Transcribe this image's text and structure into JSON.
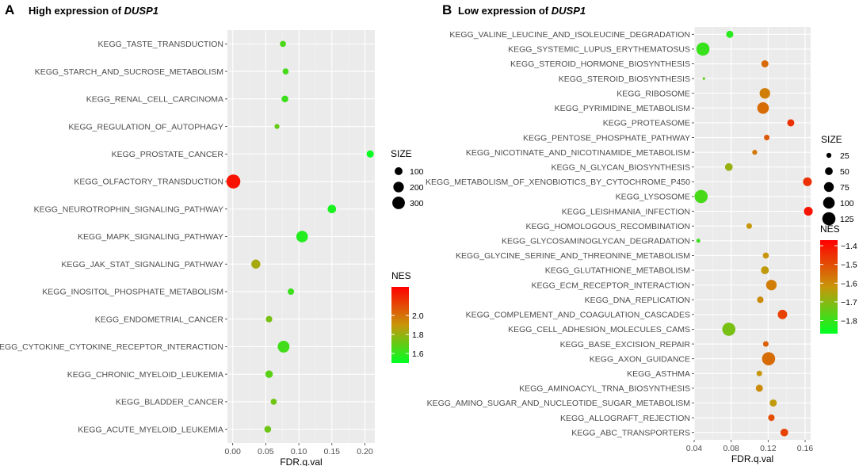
{
  "chart_data": [
    {
      "type": "scatter",
      "panel": "A",
      "title_prefix": "High expression of ",
      "title_gene": "DUSP1",
      "xlabel": "FDR.q.val",
      "ylabel": "",
      "xlim": [
        -0.008,
        0.215
      ],
      "xticks": [
        0.0,
        0.05,
        0.1,
        0.15,
        0.2
      ],
      "xtick_labels": [
        "0.00",
        "0.05",
        "0.10",
        "0.15",
        "0.20"
      ],
      "categories": [
        "KEGG_TASTE_TRANSDUCTION",
        "KEGG_STARCH_AND_SUCROSE_METABOLISM",
        "KEGG_RENAL_CELL_CARCINOMA",
        "KEGG_REGULATION_OF_AUTOPHAGY",
        "KEGG_PROSTATE_CANCER",
        "KEGG_OLFACTORY_TRANSDUCTION",
        "KEGG_NEUROTROPHIN_SIGNALING_PATHWAY",
        "KEGG_MAPK_SIGNALING_PATHWAY",
        "KEGG_JAK_STAT_SIGNALING_PATHWAY",
        "KEGG_INOSITOL_PHOSPHATE_METABOLISM",
        "KEGG_ENDOMETRIAL_CANCER",
        "KEGG_CYTOKINE_CYTOKINE_RECEPTOR_INTERACTION",
        "KEGG_CHRONIC_MYELOID_LEUKEMIA",
        "KEGG_BLADDER_CANCER",
        "KEGG_ACUTE_MYELOID_LEUKEMIA"
      ],
      "points": [
        {
          "fdr": 0.076,
          "size": 52,
          "nes": 1.65
        },
        {
          "fdr": 0.08,
          "size": 52,
          "nes": 1.64
        },
        {
          "fdr": 0.079,
          "size": 68,
          "nes": 1.62
        },
        {
          "fdr": 0.067,
          "size": 30,
          "nes": 1.7
        },
        {
          "fdr": 0.208,
          "size": 82,
          "nes": 1.52
        },
        {
          "fdr": 0.001,
          "size": 380,
          "nes": 2.25
        },
        {
          "fdr": 0.15,
          "size": 120,
          "nes": 1.55
        },
        {
          "fdr": 0.105,
          "size": 250,
          "nes": 1.57
        },
        {
          "fdr": 0.035,
          "size": 140,
          "nes": 1.83
        },
        {
          "fdr": 0.088,
          "size": 60,
          "nes": 1.62
        },
        {
          "fdr": 0.055,
          "size": 62,
          "nes": 1.74
        },
        {
          "fdr": 0.077,
          "size": 260,
          "nes": 1.63
        },
        {
          "fdr": 0.055,
          "size": 90,
          "nes": 1.68
        },
        {
          "fdr": 0.062,
          "size": 52,
          "nes": 1.72
        },
        {
          "fdr": 0.053,
          "size": 70,
          "nes": 1.72
        }
      ],
      "size_legend": {
        "title": "SIZE",
        "values": [
          100,
          200,
          300
        ],
        "labels": [
          "100",
          "200",
          "300"
        ]
      },
      "color_legend": {
        "title": "NES",
        "range": [
          1.5,
          2.3
        ],
        "ticks": [
          1.6,
          1.8,
          2.0
        ],
        "tick_labels": [
          "1.6",
          "1.8",
          "2.0"
        ],
        "low_color": "#00ff22",
        "mid_color": "#c8960a",
        "high_color": "#ff0000"
      }
    },
    {
      "type": "scatter",
      "panel": "B",
      "title_prefix": "Low expression of ",
      "title_gene": "DUSP1",
      "xlabel": "FDR.q.val",
      "ylabel": "",
      "xlim": [
        0.04,
        0.166
      ],
      "xticks": [
        0.04,
        0.08,
        0.12,
        0.16
      ],
      "xtick_labels": [
        "0.04",
        "0.08",
        "0.12",
        "0.16"
      ],
      "categories": [
        "KEGG_VALINE_LEUCINE_AND_ISOLEUCINE_DEGRADATION",
        "KEGG_SYSTEMIC_LUPUS_ERYTHEMATOSUS",
        "KEGG_STEROID_HORMONE_BIOSYNTHESIS",
        "KEGG_STEROID_BIOSYNTHESIS",
        "KEGG_RIBOSOME",
        "KEGG_PYRIMIDINE_METABOLISM",
        "KEGG_PROTEASOME",
        "KEGG_PENTOSE_PHOSPHATE_PATHWAY",
        "KEGG_NICOTINATE_AND_NICOTINAMIDE_METABOLISM",
        "KEGG_N_GLYCAN_BIOSYNTHESIS",
        "KEGG_METABOLISM_OF_XENOBIOTICS_BY_CYTOCHROME_P450",
        "KEGG_LYSOSOME",
        "KEGG_LEISHMANIA_INFECTION",
        "KEGG_HOMOLOGOUS_RECOMBINATION",
        "KEGG_GLYCOSAMINOGLYCAN_DEGRADATION",
        "KEGG_GLYCINE_SERINE_AND_THREONINE_METABOLISM",
        "KEGG_GLUTATHIONE_METABOLISM",
        "KEGG_ECM_RECEPTOR_INTERACTION",
        "KEGG_DNA_REPLICATION",
        "KEGG_COMPLEMENT_AND_COAGULATION_CASCADES",
        "KEGG_CELL_ADHESION_MOLECULES_CAMS",
        "KEGG_BASE_EXCISION_REPAIR",
        "KEGG_AXON_GUIDANCE",
        "KEGG_ASTHMA",
        "KEGG_AMINOACYL_TRNA_BIOSYNTHESIS",
        "KEGG_AMINO_SUGAR_AND_NUCLEOTIDE_SUGAR_METABOLISM",
        "KEGG_ALLOGRAFT_REJECTION",
        "KEGG_ABC_TRANSPORTERS"
      ],
      "points": [
        {
          "fdr": 0.0785,
          "size": 44,
          "nes": -1.82
        },
        {
          "fdr": 0.0495,
          "size": 125,
          "nes": -1.8
        },
        {
          "fdr": 0.1165,
          "size": 44,
          "nes": -1.55
        },
        {
          "fdr": 0.0505,
          "size": 10,
          "nes": -1.75
        },
        {
          "fdr": 0.1165,
          "size": 85,
          "nes": -1.58
        },
        {
          "fdr": 0.1145,
          "size": 100,
          "nes": -1.55
        },
        {
          "fdr": 0.1445,
          "size": 44,
          "nes": -1.45
        },
        {
          "fdr": 0.1185,
          "size": 30,
          "nes": -1.52
        },
        {
          "fdr": 0.1055,
          "size": 25,
          "nes": -1.57
        },
        {
          "fdr": 0.0775,
          "size": 50,
          "nes": -1.68
        },
        {
          "fdr": 0.1625,
          "size": 62,
          "nes": -1.45
        },
        {
          "fdr": 0.0475,
          "size": 125,
          "nes": -1.78
        },
        {
          "fdr": 0.1635,
          "size": 62,
          "nes": -1.4
        },
        {
          "fdr": 0.0995,
          "size": 30,
          "nes": -1.62
        },
        {
          "fdr": 0.0445,
          "size": 18,
          "nes": -1.8
        },
        {
          "fdr": 0.1175,
          "size": 34,
          "nes": -1.62
        },
        {
          "fdr": 0.1165,
          "size": 52,
          "nes": -1.63
        },
        {
          "fdr": 0.1235,
          "size": 85,
          "nes": -1.58
        },
        {
          "fdr": 0.1115,
          "size": 38,
          "nes": -1.6
        },
        {
          "fdr": 0.1355,
          "size": 70,
          "nes": -1.48
        },
        {
          "fdr": 0.0775,
          "size": 125,
          "nes": -1.72
        },
        {
          "fdr": 0.1175,
          "size": 30,
          "nes": -1.53
        },
        {
          "fdr": 0.1205,
          "size": 125,
          "nes": -1.55
        },
        {
          "fdr": 0.1105,
          "size": 30,
          "nes": -1.62
        },
        {
          "fdr": 0.1105,
          "size": 44,
          "nes": -1.6
        },
        {
          "fdr": 0.1255,
          "size": 44,
          "nes": -1.63
        },
        {
          "fdr": 0.1235,
          "size": 38,
          "nes": -1.5
        },
        {
          "fdr": 0.1375,
          "size": 50,
          "nes": -1.48
        }
      ],
      "size_legend": {
        "title": "SIZE",
        "values": [
          25,
          50,
          75,
          100,
          125
        ],
        "labels": [
          "25",
          "50",
          "75",
          "100",
          "125"
        ]
      },
      "color_legend": {
        "title": "NES",
        "range": [
          -1.87,
          -1.37
        ],
        "ticks": [
          -1.4,
          -1.5,
          -1.6,
          -1.7,
          -1.8
        ],
        "tick_labels": [
          "−1.4",
          "−1.5",
          "−1.6",
          "−1.7",
          "−1.8"
        ],
        "low_color": "#00ff22",
        "mid_color": "#c8960a",
        "high_color": "#ff0000"
      }
    }
  ]
}
